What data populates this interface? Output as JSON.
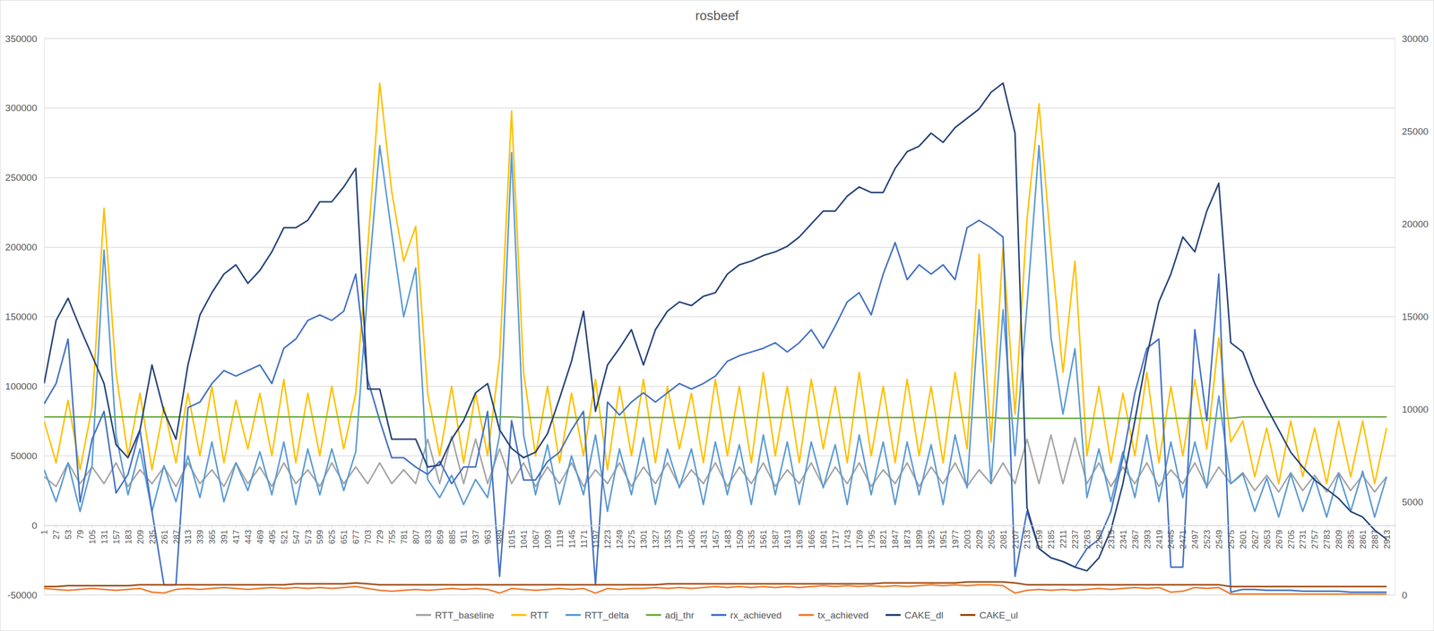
{
  "chart_data": {
    "type": "line",
    "title": "rosbeef",
    "x": [
      1,
      27,
      53,
      79,
      105,
      131,
      157,
      183,
      209,
      235,
      261,
      287,
      313,
      339,
      365,
      391,
      417,
      443,
      469,
      495,
      521,
      547,
      573,
      599,
      625,
      651,
      677,
      703,
      729,
      755,
      781,
      807,
      833,
      859,
      885,
      911,
      937,
      963,
      989,
      1015,
      1041,
      1067,
      1093,
      1119,
      1145,
      1171,
      1197,
      1223,
      1249,
      1275,
      1301,
      1327,
      1353,
      1379,
      1405,
      1431,
      1457,
      1483,
      1509,
      1535,
      1561,
      1587,
      1613,
      1639,
      1665,
      1691,
      1717,
      1743,
      1769,
      1795,
      1821,
      1847,
      1873,
      1899,
      1925,
      1951,
      1977,
      2003,
      2029,
      2055,
      2081,
      2107,
      2133,
      2159,
      2185,
      2211,
      2237,
      2263,
      2289,
      2315,
      2341,
      2367,
      2393,
      2419,
      2445,
      2471,
      2497,
      2523,
      2549,
      2575,
      2601,
      2627,
      2653,
      2679,
      2705,
      2731,
      2757,
      2783,
      2809,
      2835,
      2861,
      2887,
      2913
    ],
    "xlim": [
      1,
      2931
    ],
    "xticks": [
      1,
      27,
      53,
      79,
      105,
      131,
      157,
      183,
      209,
      235,
      261,
      287,
      313,
      339,
      365,
      391,
      417,
      443,
      469,
      495,
      521,
      547,
      573,
      599,
      625,
      651,
      677,
      703,
      729,
      755,
      781,
      807,
      833,
      859,
      885,
      911,
      937,
      963,
      989,
      1015,
      1041,
      1067,
      1093,
      1119,
      1145,
      1171,
      1197,
      1223,
      1249,
      1275,
      1301,
      1327,
      1353,
      1379,
      1405,
      1431,
      1457,
      1483,
      1509,
      1535,
      1561,
      1587,
      1613,
      1639,
      1665,
      1691,
      1717,
      1743,
      1769,
      1795,
      1821,
      1847,
      1873,
      1899,
      1925,
      1951,
      1977,
      2003,
      2029,
      2055,
      2081,
      2107,
      2133,
      2159,
      2185,
      2211,
      2237,
      2263,
      2289,
      2315,
      2341,
      2367,
      2393,
      2419,
      2445,
      2471,
      2497,
      2523,
      2549,
      2575,
      2601,
      2627,
      2653,
      2679,
      2705,
      2731,
      2757,
      2783,
      2809,
      2835,
      2861,
      2887,
      2913
    ],
    "ylim": [
      -50000,
      350000
    ],
    "yticks": [
      -50000,
      0,
      50000,
      100000,
      150000,
      200000,
      250000,
      300000,
      350000
    ],
    "y2lim": [
      0,
      30000
    ],
    "y2ticks": [
      0,
      5000,
      10000,
      15000,
      20000,
      25000,
      30000
    ],
    "grid": true,
    "legend": "bottom",
    "series": [
      {
        "name": "RTT_baseline",
        "color": "#a5a5a5",
        "values": [
          35000,
          28000,
          45000,
          30000,
          42000,
          30000,
          45000,
          28000,
          40000,
          30000,
          42000,
          28000,
          45000,
          30000,
          40000,
          28000,
          45000,
          30000,
          42000,
          28000,
          45000,
          30000,
          40000,
          28000,
          45000,
          30000,
          42000,
          30000,
          45000,
          30000,
          40000,
          30000,
          62000,
          30000,
          64000,
          30000,
          62000,
          30000,
          55000,
          30000,
          45000,
          28000,
          42000,
          30000,
          45000,
          28000,
          40000,
          30000,
          45000,
          28000,
          42000,
          30000,
          45000,
          28000,
          40000,
          30000,
          45000,
          28000,
          42000,
          30000,
          45000,
          28000,
          40000,
          30000,
          45000,
          28000,
          42000,
          30000,
          45000,
          28000,
          40000,
          30000,
          45000,
          28000,
          42000,
          30000,
          45000,
          28000,
          40000,
          30000,
          45000,
          30000,
          62000,
          30000,
          65000,
          30000,
          63000,
          30000,
          45000,
          28000,
          42000,
          30000,
          45000,
          28000,
          40000,
          30000,
          45000,
          28000,
          42000,
          30000,
          38000,
          25000,
          36000,
          24000,
          38000,
          25000,
          36000,
          24000,
          38000,
          25000,
          36000,
          24000,
          35000
        ]
      },
      {
        "name": "RTT",
        "color": "#ffc000",
        "values": [
          75000,
          45000,
          90000,
          40000,
          85000,
          228000,
          110000,
          50000,
          95000,
          40000,
          85000,
          45000,
          95000,
          50000,
          100000,
          45000,
          90000,
          55000,
          95000,
          50000,
          105000,
          45000,
          95000,
          50000,
          100000,
          55000,
          95000,
          200000,
          318000,
          240000,
          190000,
          215000,
          95000,
          50000,
          100000,
          45000,
          95000,
          50000,
          120000,
          298000,
          110000,
          50000,
          100000,
          45000,
          95000,
          50000,
          105000,
          40000,
          100000,
          50000,
          105000,
          45000,
          100000,
          55000,
          95000,
          45000,
          105000,
          50000,
          100000,
          45000,
          110000,
          50000,
          100000,
          45000,
          105000,
          55000,
          100000,
          45000,
          110000,
          50000,
          100000,
          45000,
          105000,
          50000,
          100000,
          45000,
          110000,
          55000,
          195000,
          60000,
          200000,
          80000,
          220000,
          303000,
          200000,
          110000,
          190000,
          50000,
          100000,
          45000,
          95000,
          50000,
          110000,
          45000,
          100000,
          50000,
          105000,
          55000,
          135000,
          60000,
          75000,
          35000,
          70000,
          30000,
          75000,
          35000,
          70000,
          30000,
          75000,
          35000,
          75000,
          30000,
          70000
        ]
      },
      {
        "name": "RTT_delta",
        "color": "#5b9bd5",
        "values": [
          40000,
          17000,
          45000,
          10000,
          43000,
          198000,
          65000,
          22000,
          55000,
          10000,
          43000,
          17000,
          50000,
          20000,
          60000,
          17000,
          45000,
          25000,
          53000,
          22000,
          60000,
          15000,
          55000,
          22000,
          55000,
          25000,
          53000,
          170000,
          273000,
          210000,
          150000,
          185000,
          33000,
          20000,
          36000,
          15000,
          33000,
          20000,
          65000,
          268000,
          65000,
          22000,
          58000,
          15000,
          50000,
          22000,
          65000,
          10000,
          55000,
          22000,
          63000,
          15000,
          55000,
          27000,
          55000,
          15000,
          60000,
          22000,
          58000,
          15000,
          65000,
          22000,
          60000,
          15000,
          60000,
          27000,
          58000,
          15000,
          65000,
          22000,
          60000,
          15000,
          60000,
          22000,
          58000,
          15000,
          65000,
          27000,
          155000,
          30000,
          155000,
          50000,
          158000,
          273000,
          135000,
          80000,
          127000,
          20000,
          55000,
          17000,
          53000,
          20000,
          65000,
          17000,
          60000,
          20000,
          60000,
          27000,
          93000,
          30000,
          37000,
          10000,
          34000,
          6000,
          37000,
          10000,
          34000,
          6000,
          37000,
          10000,
          39000,
          6000,
          35000
        ]
      },
      {
        "name": "adj_thr",
        "color": "#70ad47",
        "values": [
          78000,
          78000,
          78000,
          78000,
          78000,
          78000,
          78000,
          78000,
          78000,
          78000,
          78000,
          78000,
          78000,
          78000,
          78000,
          78000,
          78000,
          78000,
          78000,
          78000,
          78000,
          78000,
          78000,
          78000,
          78000,
          78000,
          78000,
          78000,
          78000,
          78000,
          78000,
          78000,
          78000,
          78000,
          78000,
          78000,
          78000,
          78000,
          78000,
          78000,
          77500,
          77500,
          77500,
          77500,
          77500,
          77500,
          77500,
          77500,
          77500,
          77500,
          77500,
          77500,
          77500,
          77500,
          77500,
          77500,
          77500,
          77500,
          77500,
          77500,
          77500,
          77500,
          77500,
          77500,
          77500,
          77500,
          77500,
          77500,
          77500,
          77500,
          77500,
          77500,
          77500,
          77500,
          77500,
          77500,
          77500,
          77500,
          77500,
          77500,
          77000,
          77000,
          77000,
          77000,
          77000,
          77000,
          77000,
          77000,
          77000,
          77000,
          77000,
          77000,
          77000,
          77000,
          77000,
          77000,
          77000,
          77000,
          77000,
          77000,
          78000,
          78000,
          78000,
          78000,
          78000,
          78000,
          78000,
          78000,
          78000,
          78000,
          78000,
          78000,
          78000
        ]
      },
      {
        "name": "rx_achieved",
        "color": "#4472c4",
        "axis": "y2",
        "values": [
          10300,
          11400,
          13800,
          5000,
          8400,
          9900,
          5500,
          6500,
          8900,
          4500,
          540,
          540,
          10100,
          10400,
          11400,
          12100,
          11800,
          12100,
          12400,
          11400,
          13300,
          13800,
          14800,
          15100,
          14800,
          15300,
          17300,
          11600,
          9400,
          7400,
          7400,
          6900,
          6500,
          7200,
          6000,
          6900,
          6900,
          9900,
          1000,
          9400,
          6200,
          6200,
          7200,
          7700,
          8900,
          9900,
          540,
          10400,
          9700,
          10400,
          10900,
          10400,
          10900,
          11400,
          11100,
          11400,
          11800,
          12600,
          12900,
          13100,
          13300,
          13600,
          13100,
          13600,
          14300,
          13300,
          14500,
          15800,
          16300,
          15100,
          17300,
          19000,
          17000,
          17800,
          17300,
          17800,
          17000,
          19800,
          20200,
          19800,
          19300,
          1000,
          4500,
          2500,
          2000,
          1800,
          1500,
          2500,
          3000,
          4500,
          7400,
          10900,
          13300,
          13800,
          1500,
          1500,
          14300,
          9400,
          17300,
          150,
          300,
          300,
          250,
          250,
          250,
          200,
          200,
          200,
          200,
          150,
          150,
          150,
          150
        ]
      },
      {
        "name": "tx_achieved",
        "color": "#ed7d31",
        "axis": "y2",
        "values": [
          350,
          300,
          250,
          300,
          350,
          300,
          250,
          300,
          350,
          150,
          100,
          300,
          350,
          300,
          350,
          400,
          350,
          300,
          350,
          400,
          350,
          400,
          350,
          400,
          350,
          400,
          450,
          350,
          250,
          200,
          250,
          300,
          250,
          300,
          350,
          300,
          350,
          300,
          100,
          350,
          300,
          250,
          300,
          350,
          300,
          350,
          100,
          350,
          300,
          350,
          350,
          400,
          350,
          400,
          350,
          400,
          450,
          400,
          450,
          400,
          450,
          400,
          450,
          400,
          450,
          500,
          450,
          500,
          450,
          500,
          450,
          500,
          450,
          500,
          550,
          500,
          550,
          500,
          550,
          550,
          500,
          100,
          250,
          300,
          250,
          300,
          250,
          300,
          350,
          300,
          350,
          400,
          350,
          400,
          150,
          200,
          400,
          350,
          400,
          50,
          50,
          50,
          50,
          50,
          50,
          50,
          50,
          50,
          50,
          50,
          50,
          50,
          50
        ]
      },
      {
        "name": "CAKE_dl",
        "color": "#264478",
        "axis": "y2",
        "values": [
          11400,
          14800,
          16000,
          14400,
          12900,
          11400,
          8100,
          7400,
          8900,
          12400,
          9900,
          8400,
          12400,
          15100,
          16300,
          17300,
          17800,
          16800,
          17500,
          18500,
          19800,
          19800,
          20200,
          21200,
          21200,
          22000,
          23000,
          11100,
          11100,
          8400,
          8400,
          8400,
          6900,
          7000,
          8400,
          9400,
          10900,
          11400,
          8900,
          7900,
          7400,
          7700,
          8700,
          10600,
          12600,
          15300,
          9900,
          12400,
          13300,
          14300,
          12400,
          14300,
          15300,
          15800,
          15600,
          16100,
          16300,
          17300,
          17800,
          18000,
          18300,
          18500,
          18800,
          19300,
          20000,
          20700,
          20700,
          21500,
          22000,
          21700,
          21700,
          23000,
          23900,
          24200,
          24900,
          24400,
          25200,
          25700,
          26200,
          27100,
          27600,
          24900,
          4700,
          2500,
          2000,
          1800,
          1500,
          1300,
          2000,
          3500,
          6000,
          9400,
          12900,
          15800,
          17300,
          19300,
          18500,
          20700,
          22200,
          13600,
          13100,
          11400,
          10100,
          8900,
          7700,
          6900,
          6200,
          5700,
          5200,
          4500,
          4200,
          3500,
          3000
        ]
      },
      {
        "name": "CAKE_ul",
        "color": "#9e480e",
        "axis": "y2",
        "values": [
          450,
          450,
          500,
          500,
          500,
          500,
          500,
          500,
          550,
          550,
          550,
          550,
          550,
          550,
          550,
          550,
          550,
          550,
          550,
          550,
          550,
          600,
          600,
          600,
          600,
          600,
          650,
          600,
          550,
          550,
          550,
          550,
          550,
          550,
          550,
          550,
          550,
          550,
          550,
          550,
          550,
          550,
          550,
          550,
          550,
          550,
          550,
          550,
          550,
          550,
          550,
          550,
          600,
          600,
          600,
          600,
          600,
          600,
          600,
          600,
          600,
          600,
          600,
          600,
          600,
          600,
          600,
          600,
          600,
          600,
          650,
          650,
          650,
          650,
          650,
          650,
          650,
          700,
          700,
          700,
          700,
          650,
          550,
          550,
          550,
          550,
          550,
          550,
          550,
          550,
          550,
          550,
          550,
          550,
          550,
          550,
          550,
          550,
          550,
          450,
          450,
          450,
          450,
          450,
          450,
          450,
          450,
          450,
          450,
          450,
          450,
          450,
          450
        ]
      }
    ]
  }
}
